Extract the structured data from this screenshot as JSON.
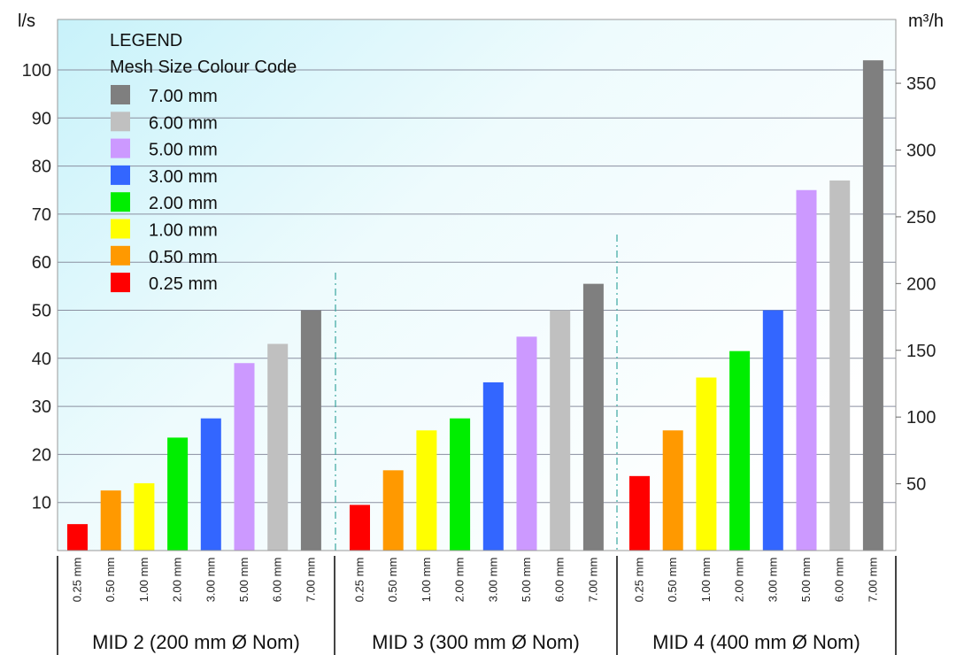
{
  "chart_data": {
    "type": "bar",
    "ylabel_left": "l/s",
    "ylabel_right": "m³/h",
    "ylim_left": [
      0,
      110
    ],
    "yticks_left": [
      10,
      20,
      30,
      40,
      50,
      60,
      70,
      80,
      90,
      100
    ],
    "yticks_right": [
      50,
      100,
      150,
      200,
      250,
      300,
      350
    ],
    "grid": true,
    "legend": {
      "title": "LEGEND",
      "subtitle": "Mesh Size Colour Code",
      "placement": "top-left",
      "entries": [
        {
          "label": "7.00 mm",
          "color": "#7f7f7f"
        },
        {
          "label": "6.00 mm",
          "color": "#c0c0c0"
        },
        {
          "label": "5.00 mm",
          "color": "#cc99ff"
        },
        {
          "label": "3.00 mm",
          "color": "#3366ff"
        },
        {
          "label": "2.00 mm",
          "color": "#00ee00"
        },
        {
          "label": "1.00 mm",
          "color": "#ffff00"
        },
        {
          "label": "0.50 mm",
          "color": "#ff9900"
        },
        {
          "label": "0.25 mm",
          "color": "#ff0000"
        }
      ]
    },
    "categories": [
      "0.25 mm",
      "0.50 mm",
      "1.00 mm",
      "2.00 mm",
      "3.00 mm",
      "5.00 mm",
      "6.00 mm",
      "7.00 mm"
    ],
    "colors": [
      "#ff0000",
      "#ff9900",
      "#ffff00",
      "#00ee00",
      "#3366ff",
      "#cc99ff",
      "#c0c0c0",
      "#7f7f7f"
    ],
    "groups": [
      {
        "label": "MID 2   (200 mm Ø Nom)",
        "values": [
          5.5,
          12.5,
          14,
          23.5,
          27.5,
          39,
          43,
          50
        ]
      },
      {
        "label": "MID 3   (300 mm Ø Nom)",
        "values": [
          9.5,
          16.7,
          25,
          27.5,
          35,
          44.5,
          50,
          55.5
        ]
      },
      {
        "label": "MID 4   (400 mm Ø Nom)",
        "values": [
          15.5,
          25,
          36,
          41.5,
          50,
          75,
          77,
          102
        ]
      }
    ]
  }
}
